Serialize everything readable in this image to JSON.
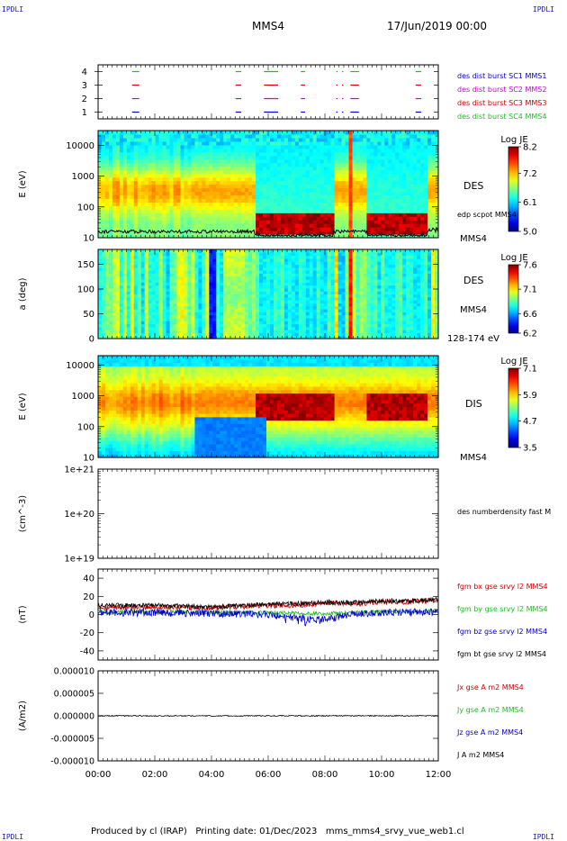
{
  "header": {
    "corner_label": "IPDLI",
    "spacecraft": "MMS4",
    "datetime": "17/Jun/2019 00:00"
  },
  "footer": {
    "text": "Produced by cl (IRAP)   Printing date: 01/Dec/2023   mms_mms4_srvy_vue_web1.cl"
  },
  "colors": {
    "red": "#cc0000",
    "green": "#22bb22",
    "blue": "#0000cc",
    "magenta": "#cc00cc",
    "black": "#000000",
    "navy": "#1a1aa8"
  },
  "chart_data": [
    {
      "id": "burst",
      "type": "line",
      "ylim": [
        0.5,
        4.5
      ],
      "yticks": [
        "1",
        "2",
        "3",
        "4"
      ],
      "series": [
        {
          "name": "des dist burst SC1 MMS1",
          "color": "#0000cc",
          "level": 1
        },
        {
          "name": "des dist burst SC2 MMS2",
          "color": "#cc00cc",
          "level": 2
        },
        {
          "name": "des dist burst SC3 MMS3",
          "color": "#cc0000",
          "level": 3
        },
        {
          "name": "des dist burst SC4 MMS4",
          "color": "#22bb22",
          "level": 4
        }
      ],
      "intervals_hours": [
        [
          1.2,
          1.45
        ],
        [
          4.85,
          5.05
        ],
        [
          5.85,
          6.35
        ],
        [
          7.15,
          7.3
        ],
        [
          8.4,
          8.45
        ],
        [
          8.6,
          8.65
        ],
        [
          8.9,
          9.2
        ],
        [
          11.2,
          11.4
        ]
      ]
    },
    {
      "id": "des_energy",
      "type": "heatmap",
      "ylabel": "E (eV)",
      "ylog": true,
      "ylim": [
        10,
        30000
      ],
      "yticks": [
        "10",
        "100",
        "1000",
        "10000"
      ],
      "colorbar": {
        "title": "Log JE",
        "ticks": [
          "5.0",
          "6.1",
          "7.2",
          "8.2"
        ],
        "range": [
          5.0,
          8.2
        ]
      },
      "right_labels": [
        "DES",
        "edp scpot MMS4",
        "MMS4"
      ],
      "overlay": "edp scpot MMS4"
    },
    {
      "id": "des_pitch",
      "type": "heatmap",
      "ylabel": "a (deg)",
      "ylim": [
        0,
        180
      ],
      "yticks": [
        "0",
        "50",
        "100",
        "150"
      ],
      "colorbar": {
        "title": "Log JE",
        "ticks": [
          "6.2",
          "6.6",
          "7.1",
          "7.6"
        ],
        "range": [
          6.2,
          7.6
        ]
      },
      "right_labels": [
        "DES",
        "MMS4",
        "128-174 eV"
      ]
    },
    {
      "id": "dis_energy",
      "type": "heatmap",
      "ylabel": "E (eV)",
      "ylog": true,
      "ylim": [
        10,
        20000
      ],
      "yticks": [
        "10",
        "100",
        "1000",
        "10000"
      ],
      "colorbar": {
        "title": "Log JE",
        "ticks": [
          "3.5",
          "4.7",
          "5.9",
          "7.1"
        ],
        "range": [
          3.5,
          7.1
        ]
      },
      "right_labels": [
        "DIS",
        "MMS4"
      ]
    },
    {
      "id": "density",
      "type": "line",
      "ylabel": "(cm^-3)",
      "ylog": true,
      "ylim": [
        1e+19,
        1e+21
      ],
      "yticks": [
        "1e+19",
        "1e+20",
        "1e+21"
      ],
      "series": [
        {
          "name": "des numberdensity fast M",
          "color": "#000000",
          "values": []
        }
      ]
    },
    {
      "id": "fgm",
      "type": "line",
      "ylabel": "(nT)",
      "ylim": [
        -50,
        50
      ],
      "yticks": [
        "-40",
        "-20",
        "0",
        "20",
        "40"
      ],
      "series": [
        {
          "name": "fgm bx gse srvy l2 MMS4",
          "color": "#cc0000",
          "base": [
            [
              0,
              8
            ],
            [
              2,
              8
            ],
            [
              4,
              7
            ],
            [
              5,
              9
            ],
            [
              6,
              10
            ],
            [
              7,
              10
            ],
            [
              8,
              13
            ],
            [
              9,
              12
            ],
            [
              10,
              14
            ],
            [
              11,
              14
            ],
            [
              12,
              16
            ]
          ],
          "noise": 3
        },
        {
          "name": "fgm by gse srvy l2 MMS4",
          "color": "#22bb22",
          "base": [
            [
              0,
              3
            ],
            [
              2,
              3
            ],
            [
              4,
              2
            ],
            [
              6,
              2
            ],
            [
              8,
              1
            ],
            [
              10,
              3
            ],
            [
              12,
              4
            ]
          ],
          "noise": 2
        },
        {
          "name": "fgm bz gse srvy l2 MMS4",
          "color": "#0000cc",
          "base": [
            [
              0,
              2
            ],
            [
              2,
              2
            ],
            [
              4,
              1
            ],
            [
              6,
              0
            ],
            [
              7,
              -4
            ],
            [
              8,
              -6
            ],
            [
              8.5,
              -3
            ],
            [
              9,
              1
            ],
            [
              10,
              2
            ],
            [
              12,
              3
            ]
          ],
          "noise": 4
        },
        {
          "name": "fgm bt gse srvy l2 MMS4",
          "color": "#000000",
          "base": [
            [
              0,
              10
            ],
            [
              2,
              10
            ],
            [
              4,
              8
            ],
            [
              5,
              10
            ],
            [
              6,
              11
            ],
            [
              7,
              12
            ],
            [
              8,
              14
            ],
            [
              9,
              13
            ],
            [
              10,
              15
            ],
            [
              11,
              15
            ],
            [
              12,
              17
            ]
          ],
          "noise": 2.5
        }
      ]
    },
    {
      "id": "current",
      "type": "line",
      "ylabel": "(A/m2)",
      "ylim": [
        -1e-05,
        1e-05
      ],
      "yticks": [
        "-0.000010",
        "-0.000005",
        "0.000000",
        "0.000005",
        "0.000010"
      ],
      "series": [
        {
          "name": "Jx gse A m2 MMS4",
          "color": "#cc0000"
        },
        {
          "name": "Jy gse A m2 MMS4",
          "color": "#22bb22"
        },
        {
          "name": "Jz gse A m2 MMS4",
          "color": "#0000cc"
        },
        {
          "name": "J A m2 MMS4",
          "color": "#000000"
        }
      ]
    }
  ],
  "xaxis": {
    "range_hours": [
      0,
      12
    ],
    "tick_labels": [
      "00:00",
      "02:00",
      "04:00",
      "06:00",
      "08:00",
      "10:00",
      "12:00"
    ]
  }
}
